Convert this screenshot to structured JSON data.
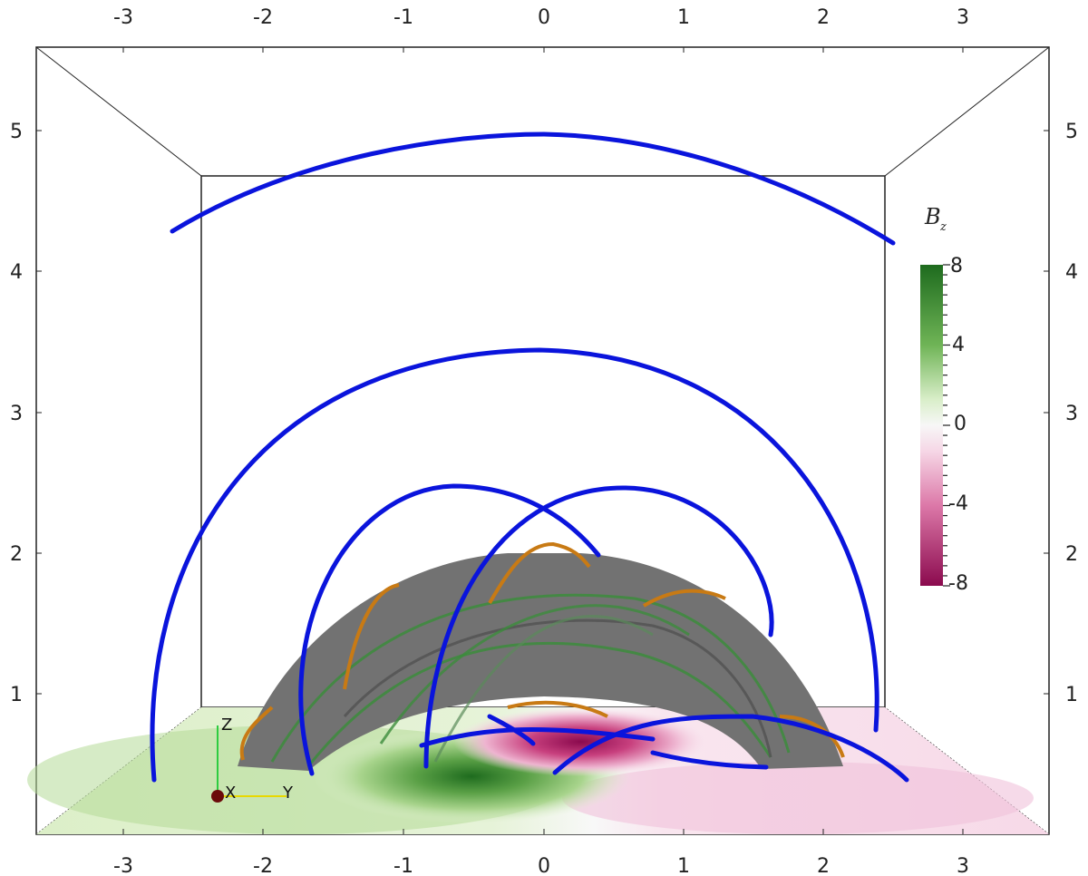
{
  "axes": {
    "top_ticks": [
      "-3",
      "-2",
      "-1",
      "0",
      "1",
      "2",
      "3"
    ],
    "bottom_ticks": [
      "-3",
      "-2",
      "-1",
      "0",
      "1",
      "2",
      "3"
    ],
    "left_ticks": [
      "5",
      "4",
      "3",
      "2",
      "1"
    ],
    "right_ticks": [
      "5",
      "4",
      "3",
      "2",
      "1"
    ]
  },
  "colorbar": {
    "title": "B",
    "subscript": "z",
    "labels": [
      "8",
      "4",
      "0",
      "-4",
      "-8"
    ],
    "range": [
      -8,
      8
    ],
    "high_color": "#1e6b1e",
    "low_color": "#8b0a4e"
  },
  "orientation_axes": {
    "z_label": "Z",
    "x_label": "X",
    "y_label": "Y"
  },
  "colors": {
    "field_lines": "#0a14dc",
    "flux_rope_lines": "#c87a14",
    "inner_lines": "#3c8c3c",
    "surface": "#707070"
  }
}
